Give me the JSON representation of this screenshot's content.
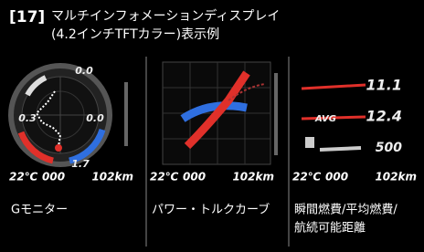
{
  "header": {
    "number": "[17]",
    "title_line1": "マルチインフォメーションディスプレイ",
    "title_line2": "(4.2インチTFTカラー)表示例"
  },
  "panels": [
    {
      "labels": [
        "0.0",
        "0.3",
        "0.0",
        "1.7"
      ],
      "status": [
        "22℃",
        "000",
        "102km"
      ],
      "caption": [
        "Gモニター"
      ]
    },
    {
      "labels": [],
      "status": [
        "22℃",
        "000",
        "102km"
      ],
      "caption": [
        "パワー・トルクカーブ"
      ]
    },
    {
      "labels": [
        "11.1",
        "AVG",
        "12.4",
        "500"
      ],
      "status": [
        "22℃",
        "000",
        "102km"
      ],
      "caption": [
        "瞬間燃費/平均燃費/",
        "航続可能距離"
      ]
    }
  ]
}
